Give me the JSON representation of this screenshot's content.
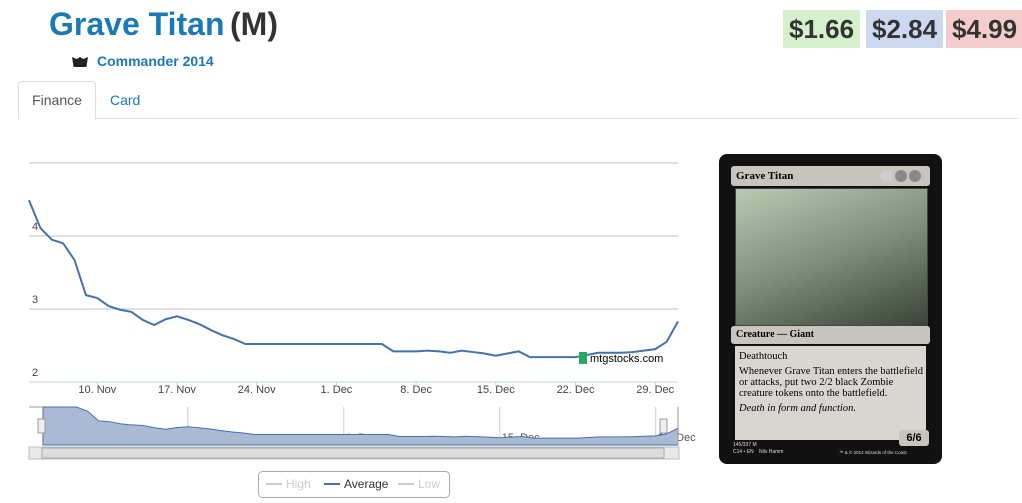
{
  "header": {
    "title": "Grave Titan",
    "rarity": "(M)",
    "set": "Commander 2014",
    "prices": [
      "$1.66",
      "$2.84",
      "$4.99"
    ]
  },
  "tabs": [
    "Finance",
    "Card"
  ],
  "chart_data": {
    "type": "line",
    "categories": [
      null,
      null,
      null,
      null,
      null,
      null,
      "10. Nov",
      null,
      null,
      null,
      null,
      null,
      null,
      "17. Nov",
      null,
      null,
      null,
      null,
      null,
      null,
      "24. Nov",
      null,
      null,
      null,
      null,
      null,
      null,
      "1. Dec",
      null,
      null,
      null,
      null,
      null,
      null,
      "8. Dec",
      null,
      null,
      null,
      null,
      null,
      null,
      "15. Dec",
      null,
      null,
      null,
      null,
      null,
      null,
      "22. Dec",
      null,
      null,
      null,
      null,
      null,
      null,
      "29. Dec",
      null,
      null
    ],
    "series": [
      {
        "name": "Average",
        "color": "#4572a7",
        "values": [
          4.49,
          4.11,
          3.95,
          3.9,
          3.67,
          3.19,
          3.15,
          3.04,
          2.99,
          2.96,
          2.85,
          2.78,
          2.86,
          2.9,
          2.85,
          2.79,
          2.71,
          2.64,
          2.59,
          2.52,
          2.52,
          2.52,
          2.52,
          2.52,
          2.52,
          2.52,
          2.52,
          2.52,
          2.52,
          2.52,
          2.52,
          2.52,
          2.42,
          2.42,
          2.42,
          2.43,
          2.42,
          2.4,
          2.43,
          2.41,
          2.39,
          2.36,
          2.39,
          2.42,
          2.34,
          2.34,
          2.34,
          2.34,
          2.34,
          2.37,
          2.4,
          2.4,
          2.4,
          2.41,
          2.43,
          2.45,
          2.55,
          2.83
        ]
      }
    ],
    "ylim": [
      2,
      5
    ],
    "yticks": [
      2,
      3,
      4
    ],
    "grid": true,
    "legend": [
      "High",
      "Average",
      "Low"
    ],
    "watermark": "mtgstocks.com"
  },
  "card": {
    "name": "Grave Titan",
    "type_line": "Creature — Giant",
    "abilities": [
      "Deathtouch",
      "Whenever Grave Titan enters the battlefield or attacks, put two 2/2 black Zombie creature tokens onto the battlefield."
    ],
    "flavor": "Death in form and function.",
    "pt": "6/6",
    "collector": "145/337 M",
    "set_lang": "C14 • EN",
    "artist": "Nils Hamm",
    "copyright": "™ & © 2014 Wizards of the Coast"
  }
}
